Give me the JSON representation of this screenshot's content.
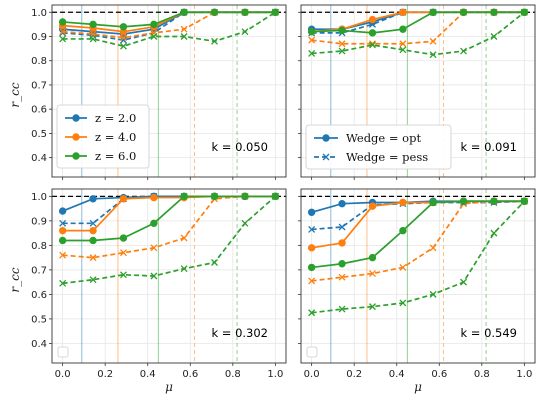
{
  "chart_data": {
    "type": "line",
    "xlabel": "μ",
    "ylabel": "r_cc",
    "xlim": [
      -0.05,
      1.05
    ],
    "ylim": [
      0.32,
      1.03
    ],
    "x_ticks": [
      "0.0",
      "0.2",
      "0.4",
      "0.6",
      "0.8",
      "1.0"
    ],
    "y_ticks": [
      "0.4",
      "0.5",
      "0.6",
      "0.7",
      "0.8",
      "0.9",
      "1.0"
    ],
    "reference_line": 1.0,
    "colors": {
      "z=2.0": "#1f77b4",
      "z=4.0": "#ff7f0e",
      "z=6.0": "#2ca02c"
    },
    "legend_z": {
      "entries": [
        "z = 2.0",
        "z = 4.0",
        "z = 6.0"
      ],
      "placement": "lower-left of top-left panel"
    },
    "legend_wedge": {
      "entries": [
        "Wedge = opt",
        "Wedge = pess"
      ],
      "placement": "lower-left of top-right panel"
    },
    "panels": [
      {
        "label": "k = 0.050",
        "vlines": [
          {
            "z": "2.0",
            "mu": [
              0.09
            ]
          },
          {
            "z": "4.0",
            "mu": [
              0.26,
              0.62
            ]
          },
          {
            "z": "6.0",
            "mu": [
              0.45,
              0.82
            ]
          }
        ],
        "series": [
          {
            "z": "2.0",
            "wedge": "opt",
            "x": [
              0.0,
              0.143,
              0.286,
              0.429,
              0.571,
              0.714,
              0.857,
              1.0
            ],
            "y": [
              0.93,
              0.92,
              0.91,
              0.93,
              1.0,
              1.0,
              1.0,
              1.0
            ]
          },
          {
            "z": "2.0",
            "wedge": "pess",
            "x": [
              0.0,
              0.143,
              0.286,
              0.429,
              0.571,
              0.714,
              0.857,
              1.0
            ],
            "y": [
              0.915,
              0.905,
              0.885,
              0.915,
              1.0,
              1.0,
              1.0,
              1.0
            ]
          },
          {
            "z": "4.0",
            "wedge": "opt",
            "x": [
              0.0,
              0.143,
              0.286,
              0.429,
              0.571,
              0.714,
              0.857,
              1.0
            ],
            "y": [
              0.945,
              0.935,
              0.92,
              0.94,
              1.0,
              1.0,
              1.0,
              1.0
            ]
          },
          {
            "z": "4.0",
            "wedge": "pess",
            "x": [
              0.0,
              0.143,
              0.286,
              0.429,
              0.571,
              0.714,
              0.857,
              1.0
            ],
            "y": [
              0.92,
              0.91,
              0.895,
              0.915,
              0.93,
              1.0,
              1.0,
              1.0
            ]
          },
          {
            "z": "6.0",
            "wedge": "opt",
            "x": [
              0.0,
              0.143,
              0.286,
              0.429,
              0.571,
              0.714,
              0.857,
              1.0
            ],
            "y": [
              0.96,
              0.95,
              0.94,
              0.95,
              1.0,
              1.0,
              1.0,
              1.0
            ]
          },
          {
            "z": "6.0",
            "wedge": "pess",
            "x": [
              0.0,
              0.143,
              0.286,
              0.429,
              0.571,
              0.714,
              0.857,
              1.0
            ],
            "y": [
              0.89,
              0.89,
              0.86,
              0.9,
              0.9,
              0.88,
              0.92,
              1.0
            ]
          }
        ]
      },
      {
        "label": "k = 0.091",
        "vlines": [
          {
            "z": "2.0",
            "mu": [
              0.09
            ]
          },
          {
            "z": "4.0",
            "mu": [
              0.26,
              0.62
            ]
          },
          {
            "z": "6.0",
            "mu": [
              0.45,
              0.82
            ]
          }
        ],
        "series": [
          {
            "z": "2.0",
            "wedge": "opt",
            "x": [
              0.0,
              0.143,
              0.286,
              0.429,
              0.571,
              0.714,
              0.857,
              1.0
            ],
            "y": [
              0.93,
              0.93,
              0.96,
              1.0,
              1.0,
              1.0,
              1.0,
              1.0
            ]
          },
          {
            "z": "2.0",
            "wedge": "pess",
            "x": [
              0.0,
              0.143,
              0.286,
              0.429,
              0.571,
              0.714,
              0.857,
              1.0
            ],
            "y": [
              0.915,
              0.915,
              0.95,
              1.0,
              1.0,
              1.0,
              1.0,
              1.0
            ]
          },
          {
            "z": "4.0",
            "wedge": "opt",
            "x": [
              0.0,
              0.143,
              0.286,
              0.429,
              0.571,
              0.714,
              0.857,
              1.0
            ],
            "y": [
              0.92,
              0.93,
              0.97,
              1.0,
              1.0,
              1.0,
              1.0,
              1.0
            ]
          },
          {
            "z": "4.0",
            "wedge": "pess",
            "x": [
              0.0,
              0.143,
              0.286,
              0.429,
              0.571,
              0.714,
              0.857,
              1.0
            ],
            "y": [
              0.885,
              0.87,
              0.87,
              0.87,
              0.88,
              1.0,
              1.0,
              1.0
            ]
          },
          {
            "z": "6.0",
            "wedge": "opt",
            "x": [
              0.0,
              0.143,
              0.286,
              0.429,
              0.571,
              0.714,
              0.857,
              1.0
            ],
            "y": [
              0.92,
              0.925,
              0.915,
              0.93,
              1.0,
              1.0,
              1.0,
              1.0
            ]
          },
          {
            "z": "6.0",
            "wedge": "pess",
            "x": [
              0.0,
              0.143,
              0.286,
              0.429,
              0.571,
              0.714,
              0.857,
              1.0
            ],
            "y": [
              0.83,
              0.84,
              0.865,
              0.845,
              0.825,
              0.84,
              0.9,
              1.0
            ]
          }
        ]
      },
      {
        "label": "k = 0.302",
        "vlines": [
          {
            "z": "2.0",
            "mu": [
              0.09
            ]
          },
          {
            "z": "4.0",
            "mu": [
              0.26,
              0.62
            ]
          },
          {
            "z": "6.0",
            "mu": [
              0.45,
              0.82
            ]
          }
        ],
        "series": [
          {
            "z": "2.0",
            "wedge": "opt",
            "x": [
              0.0,
              0.143,
              0.286,
              0.429,
              0.571,
              0.714,
              0.857,
              1.0
            ],
            "y": [
              0.94,
              0.99,
              0.995,
              1.0,
              1.0,
              1.0,
              1.0,
              1.0
            ]
          },
          {
            "z": "2.0",
            "wedge": "pess",
            "x": [
              0.0,
              0.143,
              0.286,
              0.429,
              0.571,
              0.714,
              0.857,
              1.0
            ],
            "y": [
              0.89,
              0.89,
              0.99,
              1.0,
              1.0,
              1.0,
              1.0,
              1.0
            ]
          },
          {
            "z": "4.0",
            "wedge": "opt",
            "x": [
              0.0,
              0.143,
              0.286,
              0.429,
              0.571,
              0.714,
              0.857,
              1.0
            ],
            "y": [
              0.86,
              0.86,
              0.99,
              0.995,
              0.995,
              1.0,
              1.0,
              1.0
            ]
          },
          {
            "z": "4.0",
            "wedge": "pess",
            "x": [
              0.0,
              0.143,
              0.286,
              0.429,
              0.571,
              0.714,
              0.857,
              1.0
            ],
            "y": [
              0.76,
              0.75,
              0.77,
              0.79,
              0.83,
              0.99,
              1.0,
              1.0
            ]
          },
          {
            "z": "6.0",
            "wedge": "opt",
            "x": [
              0.0,
              0.143,
              0.286,
              0.429,
              0.571,
              0.714,
              0.857,
              1.0
            ],
            "y": [
              0.82,
              0.82,
              0.83,
              0.89,
              1.0,
              1.0,
              1.0,
              1.0
            ]
          },
          {
            "z": "6.0",
            "wedge": "pess",
            "x": [
              0.0,
              0.143,
              0.286,
              0.429,
              0.571,
              0.714,
              0.857,
              1.0
            ],
            "y": [
              0.645,
              0.66,
              0.68,
              0.675,
              0.705,
              0.73,
              0.89,
              1.0
            ]
          }
        ]
      },
      {
        "label": "k = 0.549",
        "vlines": [
          {
            "z": "2.0",
            "mu": [
              0.09
            ]
          },
          {
            "z": "4.0",
            "mu": [
              0.26,
              0.62
            ]
          },
          {
            "z": "6.0",
            "mu": [
              0.45,
              0.82
            ]
          }
        ],
        "series": [
          {
            "z": "2.0",
            "wedge": "opt",
            "x": [
              0.0,
              0.143,
              0.286,
              0.429,
              0.571,
              0.714,
              0.857,
              1.0
            ],
            "y": [
              0.935,
              0.97,
              0.975,
              0.975,
              0.98,
              0.98,
              0.98,
              0.98
            ]
          },
          {
            "z": "2.0",
            "wedge": "pess",
            "x": [
              0.0,
              0.143,
              0.286,
              0.429,
              0.571,
              0.714,
              0.857,
              1.0
            ],
            "y": [
              0.865,
              0.875,
              0.965,
              0.97,
              0.975,
              0.975,
              0.975,
              0.98
            ]
          },
          {
            "z": "4.0",
            "wedge": "opt",
            "x": [
              0.0,
              0.143,
              0.286,
              0.429,
              0.571,
              0.714,
              0.857,
              1.0
            ],
            "y": [
              0.79,
              0.81,
              0.96,
              0.975,
              0.975,
              0.98,
              0.98,
              0.98
            ]
          },
          {
            "z": "4.0",
            "wedge": "pess",
            "x": [
              0.0,
              0.143,
              0.286,
              0.429,
              0.571,
              0.714,
              0.857,
              1.0
            ],
            "y": [
              0.655,
              0.67,
              0.685,
              0.71,
              0.79,
              0.97,
              0.98,
              0.98
            ]
          },
          {
            "z": "6.0",
            "wedge": "opt",
            "x": [
              0.0,
              0.143,
              0.286,
              0.429,
              0.571,
              0.714,
              0.857,
              1.0
            ],
            "y": [
              0.71,
              0.725,
              0.75,
              0.86,
              0.975,
              0.98,
              0.98,
              0.98
            ]
          },
          {
            "z": "6.0",
            "wedge": "pess",
            "x": [
              0.0,
              0.143,
              0.286,
              0.429,
              0.571,
              0.714,
              0.857,
              1.0
            ],
            "y": [
              0.525,
              0.54,
              0.55,
              0.565,
              0.6,
              0.65,
              0.85,
              0.98
            ]
          }
        ]
      }
    ]
  }
}
